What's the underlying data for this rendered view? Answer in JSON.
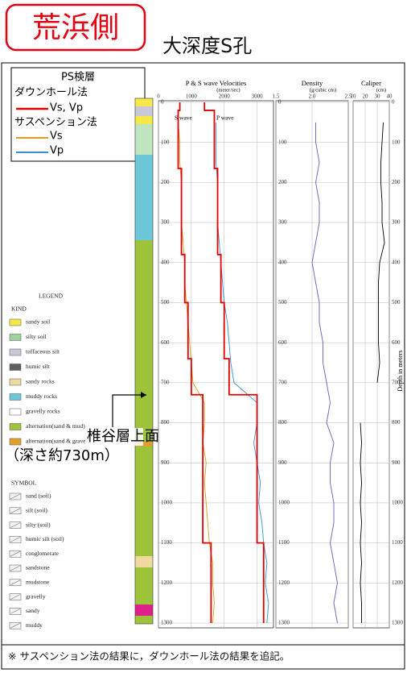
{
  "header": {
    "badge": "荒浜側",
    "title": "大深度S孔"
  },
  "footnote": "※ サスペンション法の結果に，ダウンホール法の結果を追記。",
  "ps_legend": {
    "title": "PS検層",
    "downhole": "ダウンホール法",
    "suspension": "サスペンション法"
  },
  "annotation": {
    "line1": "椎谷層上面",
    "line2": "（深さ約730m）"
  },
  "lithology_legend": {
    "title": "LEGEND",
    "kind_title": "KIND",
    "symbol_title": "SYMBOL",
    "kinds": [
      {
        "label": "sandy soil",
        "color": "#f7e84a"
      },
      {
        "label": "silty soil",
        "color": "#9ed39a"
      },
      {
        "label": "tuffaceous silt",
        "color": "#c8c8d8"
      },
      {
        "label": "humic silt",
        "color": "#606060"
      },
      {
        "label": "sandy rocks",
        "color": "#efd9a0"
      },
      {
        "label": "muddy rocks",
        "color": "#6cc8d8"
      },
      {
        "label": "gravelly rocks",
        "color": "#ffffff"
      },
      {
        "label": "alternation(sand & mud)",
        "color": "#9dc33a"
      },
      {
        "label": "alternation(sand & gravel)",
        "color": "#e0a030"
      }
    ],
    "symbols": [
      "sand (soil)",
      "silt (soil)",
      "silty (soil)",
      "humic silt (soil)",
      "conglomerate",
      "sandstone",
      "mudstone",
      "gravelly",
      "sandy",
      "muddy"
    ]
  },
  "chart_data": [
    {
      "type": "line",
      "title": "P & S wave Velocities",
      "unit": "(meter/sec)",
      "annotations": [
        "S wave",
        "P wave"
      ],
      "x": [
        0,
        50,
        100,
        150,
        200,
        250,
        300,
        350,
        400,
        450,
        500,
        550,
        600,
        650,
        700,
        750,
        800,
        850,
        900,
        950,
        1000,
        1050,
        1100,
        1150,
        1200,
        1250,
        1300
      ],
      "xlim": [
        0,
        1300
      ],
      "xticks": [
        0,
        100,
        200,
        300,
        400,
        500,
        600,
        700,
        800,
        900,
        1000,
        1100,
        1200,
        1300
      ],
      "ylim": [
        0,
        3500
      ],
      "yticks": [
        0,
        1000,
        2000,
        3000
      ],
      "grid": true,
      "series": [
        {
          "name": "Vs",
          "color": "#d8a020",
          "values": [
            null,
            600,
            650,
            650,
            700,
            700,
            700,
            750,
            800,
            800,
            850,
            900,
            950,
            1000,
            1050,
            1400,
            1400,
            1350,
            1450,
            1400,
            1450,
            1500,
            1550,
            1650,
            1650,
            1700,
            1650
          ]
        },
        {
          "name": "Vp",
          "color": "#3a8fd0",
          "values": [
            null,
            1750,
            1750,
            1750,
            1800,
            1800,
            1800,
            1850,
            1900,
            1950,
            2000,
            2100,
            2150,
            2200,
            2300,
            3000,
            3000,
            2900,
            3000,
            3100,
            3050,
            3150,
            3200,
            3300,
            3250,
            3350,
            3300
          ]
        }
      ]
    },
    {
      "type": "line",
      "legend_label": "Vs, Vp",
      "x": [
        0,
        20,
        20,
        165,
        165,
        380,
        380,
        500,
        500,
        640,
        640,
        730,
        730,
        1100,
        1100,
        1300
      ],
      "series": [
        {
          "color": "#e00000",
          "values": [
            650,
            650,
            600,
            600,
            700,
            700,
            800,
            800,
            900,
            900,
            1000,
            1000,
            1350,
            1350,
            1600,
            1600
          ]
        },
        {
          "color": "#e00000",
          "values": [
            1400,
            1400,
            1700,
            1700,
            1800,
            1800,
            1900,
            1900,
            2000,
            2000,
            2150,
            2150,
            3000,
            3000,
            3200,
            3200
          ]
        }
      ]
    },
    {
      "type": "line",
      "title": "Density",
      "unit": "(g/cubic cm)",
      "x": [
        0,
        50,
        100,
        150,
        200,
        250,
        300,
        350,
        400,
        450,
        500,
        550,
        600,
        650,
        700,
        750,
        800,
        850,
        900,
        950,
        1000,
        1050,
        1100,
        1150,
        1200,
        1250,
        1300
      ],
      "xlim": [
        0,
        1300
      ],
      "xticks": [
        0,
        100,
        200,
        300,
        400,
        500,
        600,
        700,
        800,
        900,
        1000,
        1100,
        1200,
        1300
      ],
      "ylim": [
        1.5,
        2.5
      ],
      "yticks": [
        1.5,
        {
          "value": 2,
          "label": "2.0"
        },
        2.5
      ],
      "grid": true,
      "series": [
        {
          "color": "#6060c0",
          "values": [
            null,
            2.05,
            2.05,
            2.1,
            2.05,
            2.1,
            2.1,
            2.05,
            2,
            2.05,
            2.1,
            2.1,
            2.15,
            2.15,
            2.2,
            2.25,
            2.2,
            2.3,
            2.25,
            2.25,
            2.3,
            2.3,
            2.25,
            2.3,
            2.35,
            2.3,
            2.35
          ]
        }
      ]
    },
    {
      "type": "line",
      "title": "Caliper",
      "unit": "(cm)",
      "side_label": "Depth in meters",
      "x": [
        0,
        50,
        100,
        150,
        200,
        250,
        300,
        350,
        400,
        450,
        500,
        550,
        600,
        650,
        700,
        750,
        800,
        850,
        900,
        950,
        1000,
        1050,
        1100,
        1150,
        1200,
        1250,
        1300
      ],
      "xlim": [
        0,
        1300
      ],
      "xticks": [
        0,
        100,
        200,
        300,
        400,
        500,
        600,
        700,
        800,
        900,
        1000,
        1100,
        1200,
        1300
      ],
      "ylim": [
        10,
        40
      ],
      "yticks": [
        10,
        20,
        30,
        40
      ],
      "grid": true,
      "series": [
        {
          "color": "#000000",
          "values": [
            null,
            35,
            34,
            33,
            33,
            34,
            34,
            36,
            32,
            31,
            31,
            31,
            31,
            32,
            30,
            null,
            16,
            17,
            16,
            17,
            16,
            17,
            16,
            17,
            16,
            17,
            17
          ]
        }
      ]
    }
  ]
}
